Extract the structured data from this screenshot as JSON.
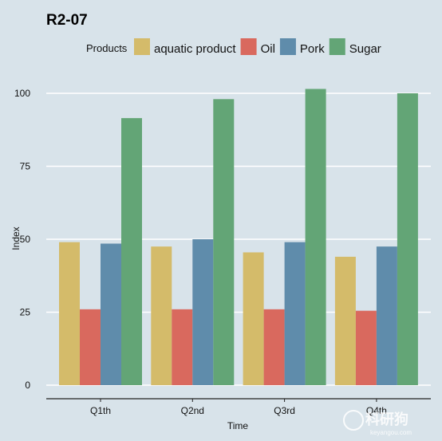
{
  "chart_data": {
    "type": "bar",
    "title": "R2-07",
    "legend_title": "Products",
    "legend_position": "top",
    "xlabel": "Time",
    "ylabel": "Index",
    "ylim": [
      0,
      105
    ],
    "yticks": [
      0,
      25,
      50,
      75,
      100
    ],
    "grid": true,
    "categories": [
      "Q1th",
      "Q2nd",
      "Q3rd",
      "Q4th"
    ],
    "series": [
      {
        "name": "aquatic product",
        "color": "#d4bb6a",
        "values": [
          49,
          47.5,
          45.5,
          44
        ]
      },
      {
        "name": "Oil",
        "color": "#d9695e",
        "values": [
          26,
          26,
          26,
          25.5
        ]
      },
      {
        "name": "Pork",
        "color": "#5f8cab",
        "values": [
          48.5,
          50,
          49,
          47.5
        ]
      },
      {
        "name": "Sugar",
        "color": "#63a576",
        "values": [
          91.5,
          98,
          101.5,
          100
        ]
      }
    ]
  },
  "watermark": {
    "logo_text": "科研狗",
    "url": "keyangou.com"
  }
}
